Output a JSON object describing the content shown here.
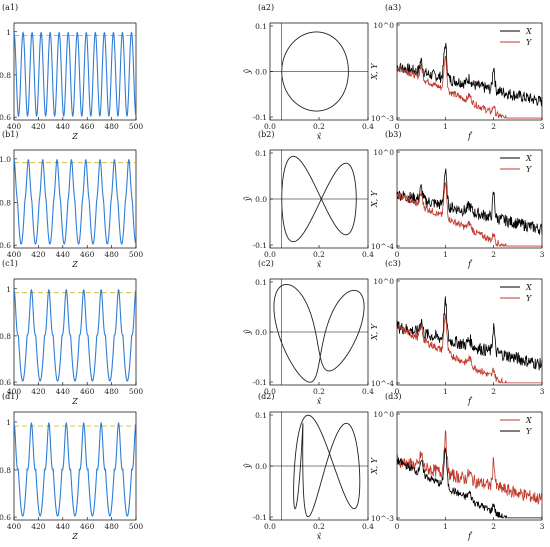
{
  "chart_data": [
    {
      "id": "a1",
      "type": "line",
      "panel_label": "(a1)",
      "xlabel": "Z",
      "ylabel": "τ",
      "xlim": [
        400,
        500
      ],
      "ylim": [
        0.6,
        1.08
      ],
      "xticks": [
        "400",
        "420",
        "440",
        "460",
        "480",
        "500"
      ],
      "yticks": [
        "0.6",
        "0.8",
        "1"
      ],
      "ref_line": 1.0,
      "series": [
        {
          "color": "#2f7ed8",
          "cycles": 13.5,
          "amplitude": [
            0.62,
            1.06
          ],
          "dip": 0
        }
      ]
    },
    {
      "id": "a2",
      "type": "line",
      "panel_label": "(a2)",
      "xlabel": "x̂",
      "ylabel": "ŷ",
      "xlim": [
        -0.05,
        0.4
      ],
      "ylim": [
        -0.12,
        0.1
      ],
      "xticks": [
        "0.0",
        "0.2",
        "0.4"
      ],
      "yticks": [
        "-0.1",
        "0.0",
        "0.1"
      ],
      "curve": "single-loop"
    },
    {
      "id": "a3",
      "type": "line",
      "panel_label": "(a3)",
      "xlabel": "f̂",
      "ylabel": "X, Y",
      "xlim": [
        0,
        3
      ],
      "yscale": "log",
      "yticks": [
        "10^0",
        "10^-3"
      ],
      "xticks": [
        "0",
        "1",
        "2",
        "3"
      ],
      "legend": [
        "X",
        "Y"
      ],
      "series": [
        {
          "name": "X",
          "color": "#000000"
        },
        {
          "name": "Y",
          "color": "#c0392b"
        }
      ]
    },
    {
      "id": "b1",
      "type": "line",
      "panel_label": "(b1)",
      "xlabel": "Z",
      "ylabel": "τ",
      "xlim": [
        400,
        500
      ],
      "ylim": [
        0.58,
        1.1
      ],
      "xticks": [
        "400",
        "420",
        "440",
        "460",
        "480",
        "500"
      ],
      "yticks": [
        "0.6",
        "0.8",
        "1.0"
      ],
      "ref_line": 1.0,
      "series": [
        {
          "color": "#2f7ed8",
          "cycles": 8.5,
          "amplitude": [
            0.62,
            1.06
          ],
          "dip": 0.35
        }
      ]
    },
    {
      "id": "b2",
      "type": "line",
      "panel_label": "(b2)",
      "xlabel": "x̂",
      "ylabel": "ŷ",
      "xlim": [
        -0.05,
        0.4
      ],
      "ylim": [
        -0.12,
        0.12
      ],
      "xticks": [
        "0.0",
        "0.2",
        "0.4"
      ],
      "yticks": [
        "-0.1",
        "0.0",
        "0.1"
      ],
      "curve": "figure-eight"
    },
    {
      "id": "b3",
      "type": "line",
      "panel_label": "(b3)",
      "xlabel": "f̂",
      "ylabel": "X, Y",
      "xlim": [
        0,
        3
      ],
      "yscale": "log",
      "yticks": [
        "10^0",
        "10^-4"
      ],
      "xticks": [
        "0",
        "1",
        "2",
        "3"
      ],
      "legend": [
        "X",
        "Y"
      ],
      "series": [
        {
          "name": "X",
          "color": "#000000"
        },
        {
          "name": "Y",
          "color": "#c0392b"
        }
      ]
    },
    {
      "id": "c1",
      "type": "line",
      "panel_label": "(c1)",
      "xlabel": "Z",
      "ylabel": "τ",
      "xlim": [
        400,
        500
      ],
      "ylim": [
        0.6,
        1.06
      ],
      "xticks": [
        "400",
        "420",
        "440",
        "460",
        "480",
        "500"
      ],
      "yticks": [
        "0.6",
        "0.8",
        "1"
      ],
      "ref_line": 1.0,
      "series": [
        {
          "color": "#2f7ed8",
          "cycles": 7,
          "amplitude": [
            0.6,
            1.05
          ],
          "dip": 0.55
        }
      ]
    },
    {
      "id": "c2",
      "type": "line",
      "panel_label": "(c2)",
      "xlabel": "x̂",
      "ylabel": "ŷ",
      "xlim": [
        -0.05,
        0.4
      ],
      "ylim": [
        -0.15,
        0.15
      ],
      "xticks": [
        "0.0",
        "0.2",
        "0.4"
      ],
      "yticks": [
        "-0.1",
        "0.0",
        "0.1"
      ],
      "curve": "double-loop"
    },
    {
      "id": "c3",
      "type": "line",
      "panel_label": "(c3)",
      "xlabel": "f̂",
      "ylabel": "X, Y",
      "xlim": [
        0,
        3
      ],
      "yscale": "log",
      "yticks": [
        "10^0",
        "10^-4"
      ],
      "xticks": [
        "0",
        "1",
        "2",
        "3"
      ],
      "legend": [
        "X",
        "Y"
      ],
      "series": [
        {
          "name": "X",
          "color": "#000000"
        },
        {
          "name": "Y",
          "color": "#c0392b"
        }
      ]
    },
    {
      "id": "d1",
      "type": "line",
      "panel_label": "(d1)",
      "xlabel": "Z",
      "ylabel": "τ",
      "xlim": [
        400,
        500
      ],
      "ylim": [
        0.55,
        1.08
      ],
      "xticks": [
        "400",
        "420",
        "440",
        "460",
        "480",
        "500"
      ],
      "yticks": [
        "0.6",
        "0.8",
        "1"
      ],
      "ref_line": 1.0,
      "series": [
        {
          "color": "#2f7ed8",
          "cycles": 7,
          "amplitude": [
            0.56,
            1.06
          ],
          "dip": 0.6
        }
      ]
    },
    {
      "id": "d2",
      "type": "line",
      "panel_label": "(d2)",
      "xlabel": "x̂",
      "ylabel": "ŷ",
      "xlim": [
        -0.05,
        0.4
      ],
      "ylim": [
        -0.15,
        0.15
      ],
      "xticks": [
        "0.0",
        "0.2",
        "0.4"
      ],
      "yticks": [
        "-0.1",
        "0.0",
        "0.1"
      ],
      "curve": "triple-loop"
    },
    {
      "id": "d3",
      "type": "line",
      "panel_label": "(d3)",
      "xlabel": "f̂",
      "ylabel": "X, Y",
      "xlim": [
        0,
        3
      ],
      "yscale": "log",
      "yticks": [
        "10^0",
        "10^-3"
      ],
      "xticks": [
        "0",
        "1",
        "2",
        "3"
      ],
      "legend": [
        "X",
        "Y"
      ],
      "series": [
        {
          "name": "X",
          "color": "#c0392b"
        },
        {
          "name": "Y",
          "color": "#000000"
        }
      ]
    }
  ]
}
